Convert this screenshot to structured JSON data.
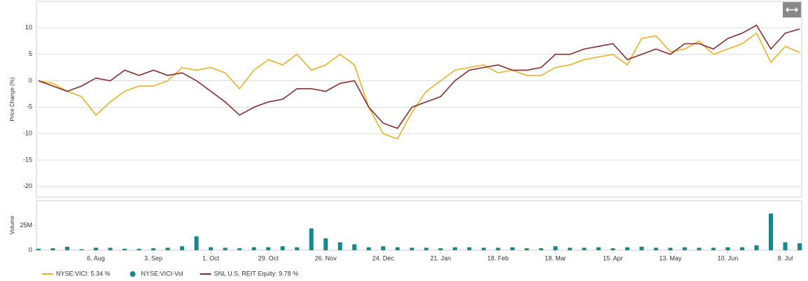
{
  "chart_data": {
    "type": "line",
    "ylabel": "Price Change (%)",
    "y2label": "Volume",
    "categories": [
      null,
      null,
      null,
      null,
      "6. Aug",
      null,
      null,
      null,
      "3. Sep",
      null,
      null,
      null,
      "1. Oct",
      null,
      null,
      null,
      "29. Oct",
      null,
      null,
      null,
      "26. Nov",
      null,
      null,
      null,
      "24. Dec",
      null,
      null,
      null,
      "21. Jan",
      null,
      null,
      null,
      "18. Feb",
      null,
      null,
      null,
      "18. Mar",
      null,
      null,
      null,
      "15. Apr",
      null,
      null,
      null,
      "13. May",
      null,
      null,
      null,
      "10. Jun",
      null,
      null,
      null,
      "8. Jul",
      null
    ],
    "series": [
      {
        "name": "NYSE:VICI: 5.34 %",
        "color": "#edb122",
        "values": [
          0,
          -0.5,
          -2,
          -3,
          -6.5,
          -4,
          -2,
          -1,
          -1,
          0,
          2.5,
          2,
          2.5,
          1.5,
          -1.5,
          2,
          4,
          3,
          5,
          2,
          3,
          5,
          3,
          -5,
          -10,
          -11,
          -6,
          -2,
          0,
          2,
          2.5,
          3,
          1.5,
          2,
          1,
          1,
          2.5,
          3,
          4,
          4.5,
          5,
          3,
          8,
          8.5,
          5.5,
          6,
          7.5,
          5,
          6,
          7,
          9,
          3.5,
          6.5,
          5.34
        ]
      },
      {
        "name": "NYSE:VICI-Vol",
        "color": "#14898b",
        "type": "bar",
        "axis": "y2",
        "values": [
          1500000,
          2000000,
          3500000,
          1000000,
          2500000,
          2500000,
          1500000,
          1500000,
          2000000,
          2500000,
          4000000,
          14000000,
          3000000,
          2500000,
          2000000,
          3000000,
          3000000,
          4000000,
          3000000,
          22000000,
          12000000,
          8000000,
          6000000,
          3000000,
          4000000,
          3000000,
          2500000,
          2500000,
          2000000,
          3000000,
          3000000,
          2500000,
          2500000,
          3000000,
          2000000,
          2000000,
          4000000,
          2500000,
          2500000,
          3000000,
          2000000,
          3000000,
          3500000,
          2500000,
          2500000,
          3000000,
          2500000,
          2500000,
          3000000,
          3000000,
          5000000,
          37000000,
          8000000,
          7000000
        ]
      },
      {
        "name": "SNL U.S. REIT Equity: 9.78 %",
        "color": "#8c2a2b",
        "values": [
          0,
          -1,
          -2,
          -1,
          0.5,
          0,
          2,
          1,
          2,
          1,
          1.5,
          0,
          -2,
          -4,
          -6.5,
          -5,
          -4,
          -3.5,
          -1.5,
          -1.5,
          -2,
          -0.5,
          0,
          -5,
          -8,
          -9,
          -5,
          -4,
          -3,
          0,
          2,
          2.5,
          3,
          2,
          2,
          2.5,
          5,
          5,
          6,
          6.5,
          7,
          4,
          5,
          6,
          5,
          7,
          7,
          6,
          8,
          9,
          10.5,
          6,
          9,
          9.78
        ]
      }
    ],
    "ylim": [
      -22,
      15
    ],
    "yticks": [
      10,
      5,
      0,
      -5,
      -10,
      -15,
      -20
    ],
    "y2lim": [
      0,
      50000000
    ],
    "y2ticks": [
      0,
      {
        "value": 25000000,
        "label": "25M"
      }
    ],
    "grid": true
  }
}
